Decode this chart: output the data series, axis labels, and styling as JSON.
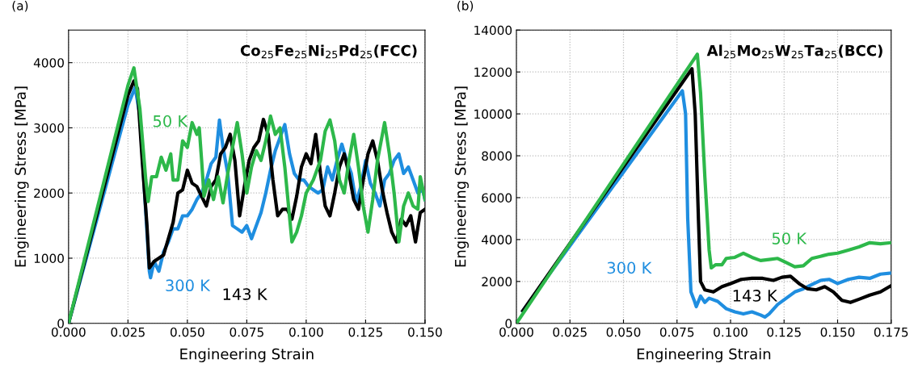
{
  "chart_data": [
    {
      "type": "line",
      "xlabel": "Engineering Strain",
      "ylabel": "Engineering Stress [MPa]",
      "annotations": [
        "(a)",
        "Co$_{25}$Fe$_{25}$Ni$_{25}$Pd$_{25}$(FCC)"
      ],
      "xlim": [
        0,
        0.15
      ],
      "ylim": [
        0,
        4500
      ],
      "xticks": [
        {
          "value": 0,
          "label": "0.000"
        },
        {
          "value": 0.025,
          "label": "0.025"
        },
        {
          "value": 0.05,
          "label": "0.050"
        },
        {
          "value": 0.075,
          "label": "0.075"
        },
        {
          "value": 0.1,
          "label": "0.100"
        },
        {
          "value": 0.125,
          "label": "0.125"
        },
        {
          "value": 0.15,
          "label": "0.150"
        }
      ],
      "yticks": [
        0,
        1000,
        2000,
        3000,
        4000
      ],
      "grid": true,
      "legend": false,
      "marker": "none",
      "line_style": "solid",
      "series": [
        {
          "name": "50 K",
          "color": "#2db84a",
          "x": [
            0,
            0.025,
            0.0275,
            0.03,
            0.0325,
            0.0335,
            0.035,
            0.037,
            0.039,
            0.041,
            0.043,
            0.044,
            0.046,
            0.048,
            0.05,
            0.052,
            0.054,
            0.055,
            0.056,
            0.057,
            0.059,
            0.061,
            0.063,
            0.065,
            0.067,
            0.069,
            0.071,
            0.073,
            0.075,
            0.077,
            0.079,
            0.081,
            0.083,
            0.085,
            0.087,
            0.089,
            0.091,
            0.094,
            0.096,
            0.098,
            0.1,
            0.103,
            0.106,
            0.108,
            0.11,
            0.112,
            0.114,
            0.116,
            0.118,
            0.12,
            0.122,
            0.124,
            0.126,
            0.128,
            0.13,
            0.133,
            0.135,
            0.137,
            0.139,
            0.141,
            0.143,
            0.145,
            0.147,
            0.148,
            0.15
          ],
          "values": [
            0,
            3650,
            3920,
            3300,
            2200,
            1870,
            2250,
            2250,
            2550,
            2350,
            2600,
            2200,
            2200,
            2800,
            2700,
            3080,
            2900,
            3000,
            2500,
            1950,
            2200,
            1900,
            2250,
            1850,
            2300,
            2700,
            3080,
            2600,
            2000,
            2400,
            2650,
            2500,
            2800,
            3180,
            2900,
            3000,
            2400,
            1250,
            1400,
            1650,
            2000,
            2200,
            2500,
            2950,
            3120,
            2800,
            2200,
            2000,
            2500,
            2900,
            2400,
            1800,
            1400,
            1900,
            2500,
            3080,
            2600,
            2000,
            1250,
            1800,
            2000,
            1800,
            1750,
            2250,
            1900
          ]
        },
        {
          "name": "143 K",
          "color": "#000000",
          "x": [
            0,
            0.025,
            0.0275,
            0.029,
            0.031,
            0.033,
            0.034,
            0.036,
            0.038,
            0.04,
            0.042,
            0.044,
            0.046,
            0.048,
            0.05,
            0.052,
            0.054,
            0.056,
            0.058,
            0.06,
            0.062,
            0.064,
            0.066,
            0.068,
            0.07,
            0.072,
            0.074,
            0.076,
            0.078,
            0.08,
            0.082,
            0.084,
            0.086,
            0.088,
            0.09,
            0.092,
            0.094,
            0.096,
            0.098,
            0.1,
            0.102,
            0.104,
            0.106,
            0.108,
            0.11,
            0.112,
            0.114,
            0.116,
            0.118,
            0.12,
            0.122,
            0.124,
            0.126,
            0.128,
            0.13,
            0.132,
            0.134,
            0.136,
            0.138,
            0.14,
            0.142,
            0.144,
            0.146,
            0.148,
            0.15
          ],
          "values": [
            0,
            3500,
            3720,
            3600,
            2500,
            1500,
            850,
            950,
            1000,
            1050,
            1300,
            1550,
            2000,
            2050,
            2350,
            2150,
            2100,
            1950,
            1800,
            2100,
            2200,
            2600,
            2700,
            2900,
            2500,
            1650,
            2100,
            2500,
            2700,
            2800,
            3130,
            2900,
            2200,
            1650,
            1750,
            1750,
            1600,
            1950,
            2400,
            2600,
            2450,
            2900,
            2300,
            1800,
            1650,
            2000,
            2400,
            2600,
            2300,
            1900,
            1750,
            2200,
            2600,
            2800,
            2500,
            2050,
            1700,
            1400,
            1250,
            1600,
            1500,
            1650,
            1250,
            1700,
            1750
          ]
        },
        {
          "name": "300 K",
          "color": "#1f8ee0",
          "x": [
            0,
            0.025,
            0.028,
            0.03,
            0.032,
            0.034,
            0.0345,
            0.036,
            0.038,
            0.04,
            0.042,
            0.044,
            0.046,
            0.048,
            0.05,
            0.052,
            0.054,
            0.056,
            0.058,
            0.06,
            0.062,
            0.0635,
            0.065,
            0.067,
            0.069,
            0.071,
            0.073,
            0.075,
            0.077,
            0.079,
            0.081,
            0.083,
            0.085,
            0.087,
            0.089,
            0.091,
            0.093,
            0.095,
            0.097,
            0.099,
            0.101,
            0.103,
            0.105,
            0.107,
            0.109,
            0.111,
            0.113,
            0.115,
            0.117,
            0.119,
            0.121,
            0.123,
            0.125,
            0.127,
            0.129,
            0.131,
            0.133,
            0.135,
            0.137,
            0.139,
            0.141,
            0.143,
            0.145,
            0.147,
            0.149,
            0.15
          ],
          "values": [
            0,
            3350,
            3620,
            3200,
            2000,
            800,
            700,
            950,
            800,
            1100,
            1250,
            1450,
            1450,
            1650,
            1650,
            1750,
            1900,
            2000,
            2200,
            2450,
            2550,
            3120,
            2700,
            2300,
            1500,
            1450,
            1400,
            1500,
            1300,
            1500,
            1700,
            2000,
            2350,
            2650,
            2850,
            3050,
            2600,
            2300,
            2200,
            2200,
            2100,
            2050,
            2000,
            2050,
            2400,
            2200,
            2500,
            2750,
            2500,
            2300,
            1850,
            2100,
            2500,
            2150,
            2000,
            1800,
            2200,
            2300,
            2500,
            2600,
            2300,
            2400,
            2200,
            2000,
            2050,
            1900
          ]
        }
      ]
    },
    {
      "type": "line",
      "xlabel": "Engineering Strain",
      "ylabel": "Engineering Stress [MPa]",
      "annotations": [
        "(b)",
        "Al$_{25}$Mo$_{25}$W$_{25}$Ta$_{25}$(BCC)"
      ],
      "xlim": [
        0,
        0.175
      ],
      "ylim": [
        0,
        14000
      ],
      "xticks": [
        {
          "value": 0,
          "label": "0.000"
        },
        {
          "value": 0.025,
          "label": "0.025"
        },
        {
          "value": 0.05,
          "label": "0.050"
        },
        {
          "value": 0.075,
          "label": "0.075"
        },
        {
          "value": 0.1,
          "label": "0.100"
        },
        {
          "value": 0.125,
          "label": "0.125"
        },
        {
          "value": 0.15,
          "label": "0.150"
        },
        {
          "value": 0.175,
          "label": "0.175"
        }
      ],
      "yticks": [
        0,
        2000,
        4000,
        6000,
        8000,
        10000,
        12000,
        14000
      ],
      "grid": true,
      "legend": false,
      "marker": "none",
      "line_style": "solid",
      "series": [
        {
          "name": "50 K",
          "color": "#2db84a",
          "x": [
            0,
            0.0845,
            0.086,
            0.088,
            0.09,
            0.091,
            0.093,
            0.096,
            0.098,
            0.102,
            0.106,
            0.11,
            0.114,
            0.118,
            0.122,
            0.126,
            0.13,
            0.134,
            0.138,
            0.142,
            0.146,
            0.15,
            0.155,
            0.16,
            0.165,
            0.17,
            0.175
          ],
          "values": [
            0,
            12850,
            11000,
            7000,
            3500,
            2650,
            2800,
            2800,
            3100,
            3150,
            3350,
            3150,
            3000,
            3050,
            3100,
            2900,
            2700,
            2750,
            3100,
            3200,
            3300,
            3350,
            3500,
            3650,
            3850,
            3800,
            3850
          ]
        },
        {
          "name": "143 K",
          "color": "#000000",
          "x": [
            0.003,
            0.082,
            0.0835,
            0.085,
            0.086,
            0.088,
            0.092,
            0.096,
            0.1,
            0.105,
            0.11,
            0.115,
            0.12,
            0.124,
            0.128,
            0.132,
            0.136,
            0.14,
            0.144,
            0.148,
            0.152,
            0.156,
            0.16,
            0.165,
            0.17,
            0.175
          ],
          "values": [
            600,
            12150,
            10000,
            5000,
            2000,
            1600,
            1500,
            1750,
            1900,
            2100,
            2150,
            2150,
            2050,
            2200,
            2250,
            1900,
            1650,
            1600,
            1750,
            1500,
            1100,
            1000,
            1150,
            1350,
            1500,
            1800
          ]
        },
        {
          "name": "300 K",
          "color": "#1f8ee0",
          "x": [
            0.003,
            0.0775,
            0.079,
            0.08,
            0.0815,
            0.083,
            0.084,
            0.086,
            0.088,
            0.09,
            0.094,
            0.098,
            0.102,
            0.106,
            0.11,
            0.114,
            0.116,
            0.118,
            0.122,
            0.126,
            0.13,
            0.134,
            0.138,
            0.142,
            0.146,
            0.15,
            0.155,
            0.16,
            0.165,
            0.17,
            0.175
          ],
          "values": [
            600,
            11100,
            10000,
            5000,
            1500,
            1100,
            800,
            1300,
            1000,
            1200,
            1050,
            700,
            550,
            450,
            550,
            400,
            300,
            450,
            900,
            1200,
            1500,
            1650,
            1850,
            2050,
            2100,
            1900,
            2100,
            2200,
            2150,
            2350,
            2400
          ]
        }
      ]
    }
  ]
}
